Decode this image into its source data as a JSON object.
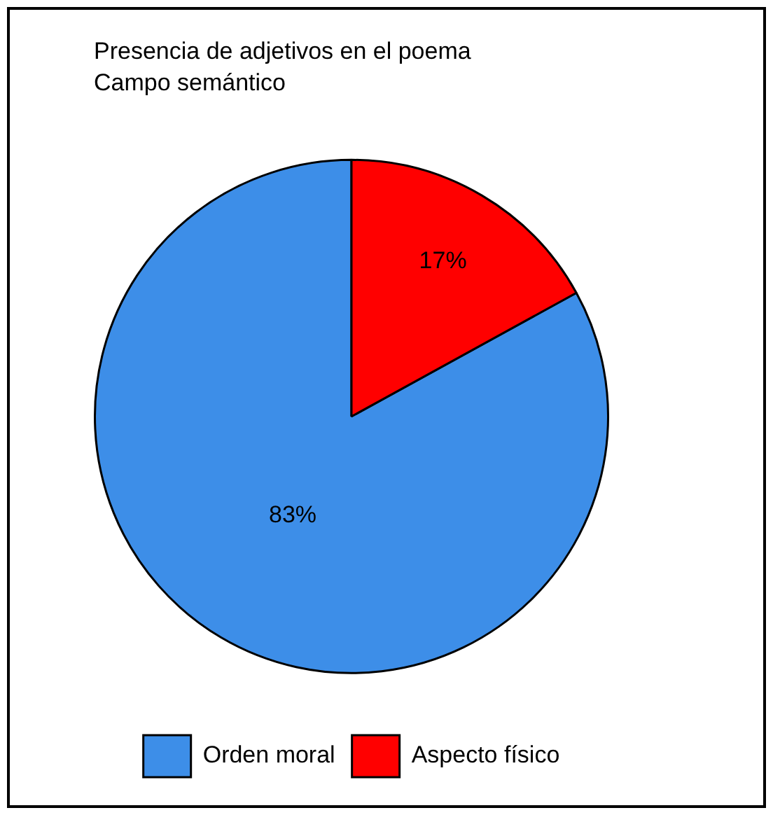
{
  "chart_data": {
    "type": "pie",
    "title": "Presencia de adjetivos en el poema",
    "subtitle": "Campo semántico",
    "categories": [
      "Orden moral",
      "Aspecto físico"
    ],
    "values": [
      83,
      17
    ],
    "colors": [
      "#3d8ee8",
      "#ff0000"
    ],
    "value_labels": [
      "83%",
      "17%"
    ],
    "legend": "bottom"
  }
}
